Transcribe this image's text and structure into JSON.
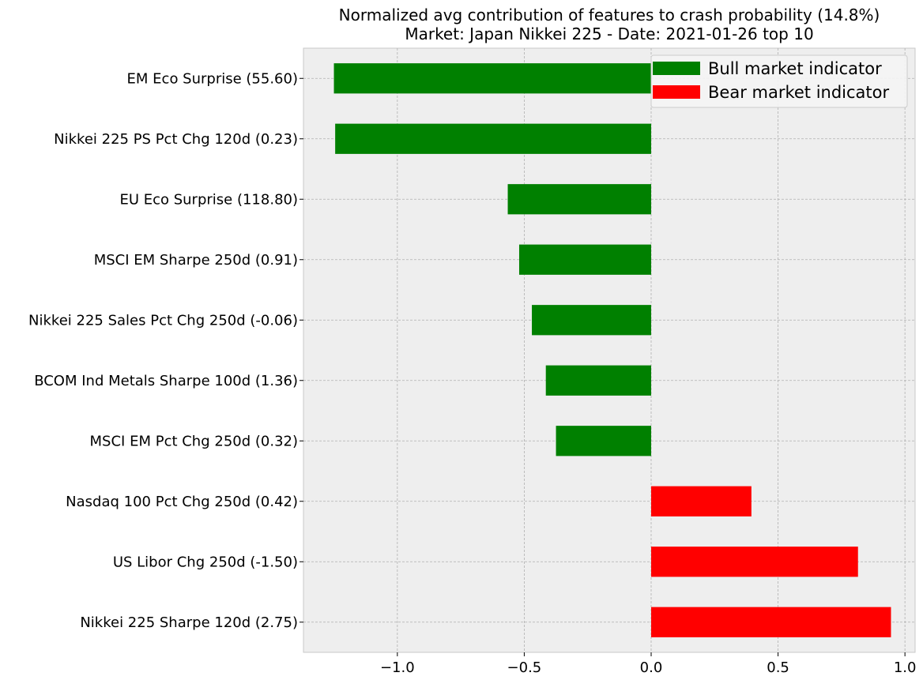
{
  "chart_data": {
    "type": "bar",
    "orientation": "horizontal",
    "title": "Normalized avg contribution of features to crash probability (14.8%)",
    "subtitle": "Market: Japan Nikkei 225 - Date: 2021-01-26  top 10",
    "xlabel": "",
    "ylabel": "",
    "categories": [
      "EM Eco Surprise (55.60)",
      "Nikkei 225 PS Pct Chg 120d (0.23)",
      "EU Eco Surprise (118.80)",
      "MSCI EM Sharpe 250d (0.91)",
      "Nikkei 225 Sales Pct Chg 250d (-0.06)",
      "BCOM Ind Metals Sharpe 100d (1.36)",
      "MSCI EM Pct Chg 250d (0.32)",
      "Nasdaq 100 Pct Chg 250d (0.42)",
      "US Libor Chg 250d (-1.50)",
      "Nikkei 225 Sharpe 120d (2.75)"
    ],
    "values": [
      -1.25,
      -1.245,
      -0.565,
      -0.52,
      -0.47,
      -0.415,
      -0.375,
      0.395,
      0.815,
      0.945
    ],
    "xlim": [
      -1.37,
      1.04
    ],
    "xticks": [
      -1.0,
      -0.5,
      0.0,
      0.5,
      1.0
    ],
    "xtick_labels": [
      "−1.0",
      "−0.5",
      "0.0",
      "0.5",
      "1.0"
    ],
    "grid": true,
    "legend": {
      "placement": "top-right",
      "entries": [
        {
          "name": "Bull market indicator",
          "color": "#008000"
        },
        {
          "name": "Bear market indicator",
          "color": "#ff0000"
        }
      ]
    },
    "colors": {
      "negative": "#008000",
      "positive": "#ff0000",
      "background": "#eeeeee",
      "grid": "#b0b0b0"
    }
  }
}
